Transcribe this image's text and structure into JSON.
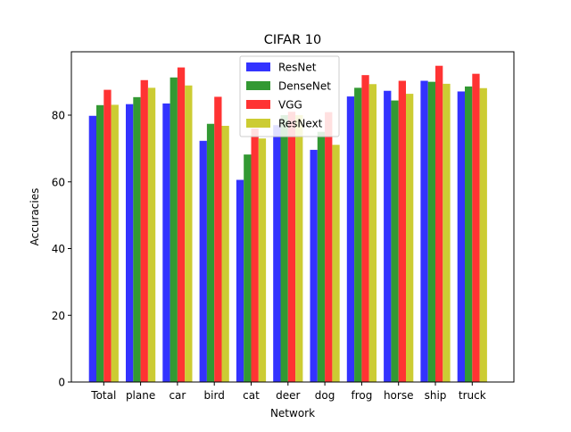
{
  "chart_data": {
    "type": "bar",
    "title": "CIFAR 10",
    "xlabel": "Network",
    "ylabel": "Accuracies",
    "categories": [
      "Total",
      "plane",
      "car",
      "bird",
      "cat",
      "deer",
      "dog",
      "frog",
      "horse",
      "ship",
      "truck"
    ],
    "series": [
      {
        "name": "ResNet",
        "color": "#3333ff",
        "values": [
          79.8,
          83.3,
          83.5,
          72.3,
          60.6,
          77.0,
          69.6,
          85.6,
          87.3,
          90.3,
          87.1
        ]
      },
      {
        "name": "DenseNet",
        "color": "#339933",
        "values": [
          83.0,
          85.4,
          91.3,
          77.4,
          68.2,
          80.0,
          75.0,
          88.2,
          84.4,
          90.0,
          88.6
        ]
      },
      {
        "name": "VGG",
        "color": "#ff3333",
        "values": [
          87.6,
          90.5,
          94.3,
          85.5,
          76.0,
          81.0,
          80.9,
          92.0,
          90.3,
          94.8,
          92.4
        ]
      },
      {
        "name": "ResNext",
        "color": "#cccc33",
        "values": [
          83.1,
          88.2,
          88.9,
          76.8,
          73.0,
          80.0,
          71.1,
          89.3,
          86.4,
          89.4,
          88.1
        ]
      }
    ],
    "ylim": [
      0,
      99
    ],
    "yticks": [
      0,
      20,
      40,
      60,
      80
    ],
    "grid": false,
    "legend": "top-center"
  }
}
